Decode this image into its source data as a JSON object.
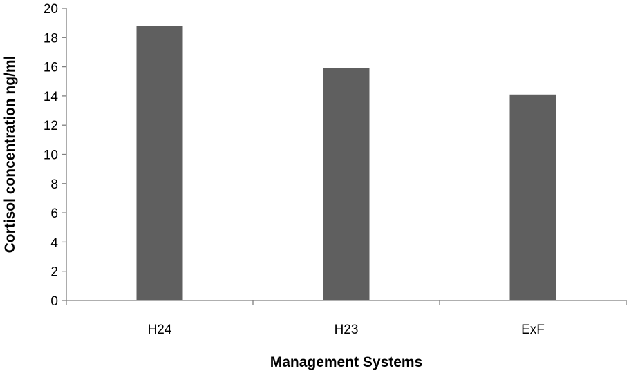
{
  "chart_data": {
    "type": "bar",
    "title": "",
    "xlabel": "Management Systems",
    "ylabel": "Cortisol concentration ng/ml",
    "categories": [
      "H24",
      "H23",
      "ExF"
    ],
    "series": [
      {
        "values": [
          18.8,
          15.9,
          14.1
        ]
      }
    ],
    "ylim": [
      0,
      20
    ],
    "ytick_step": 2,
    "yticks": [
      "0",
      "2",
      "4",
      "6",
      "8",
      "10",
      "12",
      "14",
      "16",
      "18",
      "20"
    ],
    "grid": false,
    "legend": "none",
    "bar_color": "#5f5f5f",
    "axis_color": "#7f7f7f"
  }
}
